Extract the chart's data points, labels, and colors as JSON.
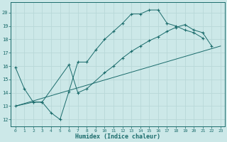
{
  "bg_color": "#cce8e8",
  "grid_color": "#aacccc",
  "line_color": "#1a6b6b",
  "xlabel": "Humidex (Indice chaleur)",
  "xlim": [
    -0.5,
    23.5
  ],
  "ylim": [
    11.5,
    20.8
  ],
  "xticks": [
    0,
    1,
    2,
    3,
    4,
    5,
    6,
    7,
    8,
    9,
    10,
    11,
    12,
    13,
    14,
    15,
    16,
    17,
    18,
    19,
    20,
    21,
    22,
    23
  ],
  "yticks": [
    12,
    13,
    14,
    15,
    16,
    17,
    18,
    19,
    20
  ],
  "curve1_x": [
    0,
    1,
    2,
    3,
    4,
    5,
    6,
    7,
    8,
    9,
    10,
    11,
    12,
    13,
    14,
    15,
    16,
    17,
    18,
    19,
    20,
    21
  ],
  "curve1_y": [
    15.9,
    14.3,
    13.3,
    13.3,
    12.5,
    12.0,
    14.1,
    16.3,
    16.3,
    17.2,
    18.0,
    18.6,
    19.2,
    19.9,
    19.9,
    20.2,
    20.2,
    19.2,
    19.0,
    18.7,
    18.5,
    18.1
  ],
  "curve2_x": [
    0,
    2,
    3,
    6,
    7,
    8,
    10,
    11,
    12,
    13,
    14,
    15,
    16,
    17,
    18,
    19,
    20,
    21,
    22
  ],
  "curve2_y": [
    13.0,
    13.3,
    13.3,
    16.1,
    14.0,
    14.3,
    15.5,
    16.0,
    16.6,
    17.1,
    17.5,
    17.9,
    18.2,
    18.6,
    18.9,
    19.1,
    18.7,
    18.5,
    17.5
  ],
  "line3_x": [
    0,
    23
  ],
  "line3_y": [
    13.0,
    17.5
  ]
}
